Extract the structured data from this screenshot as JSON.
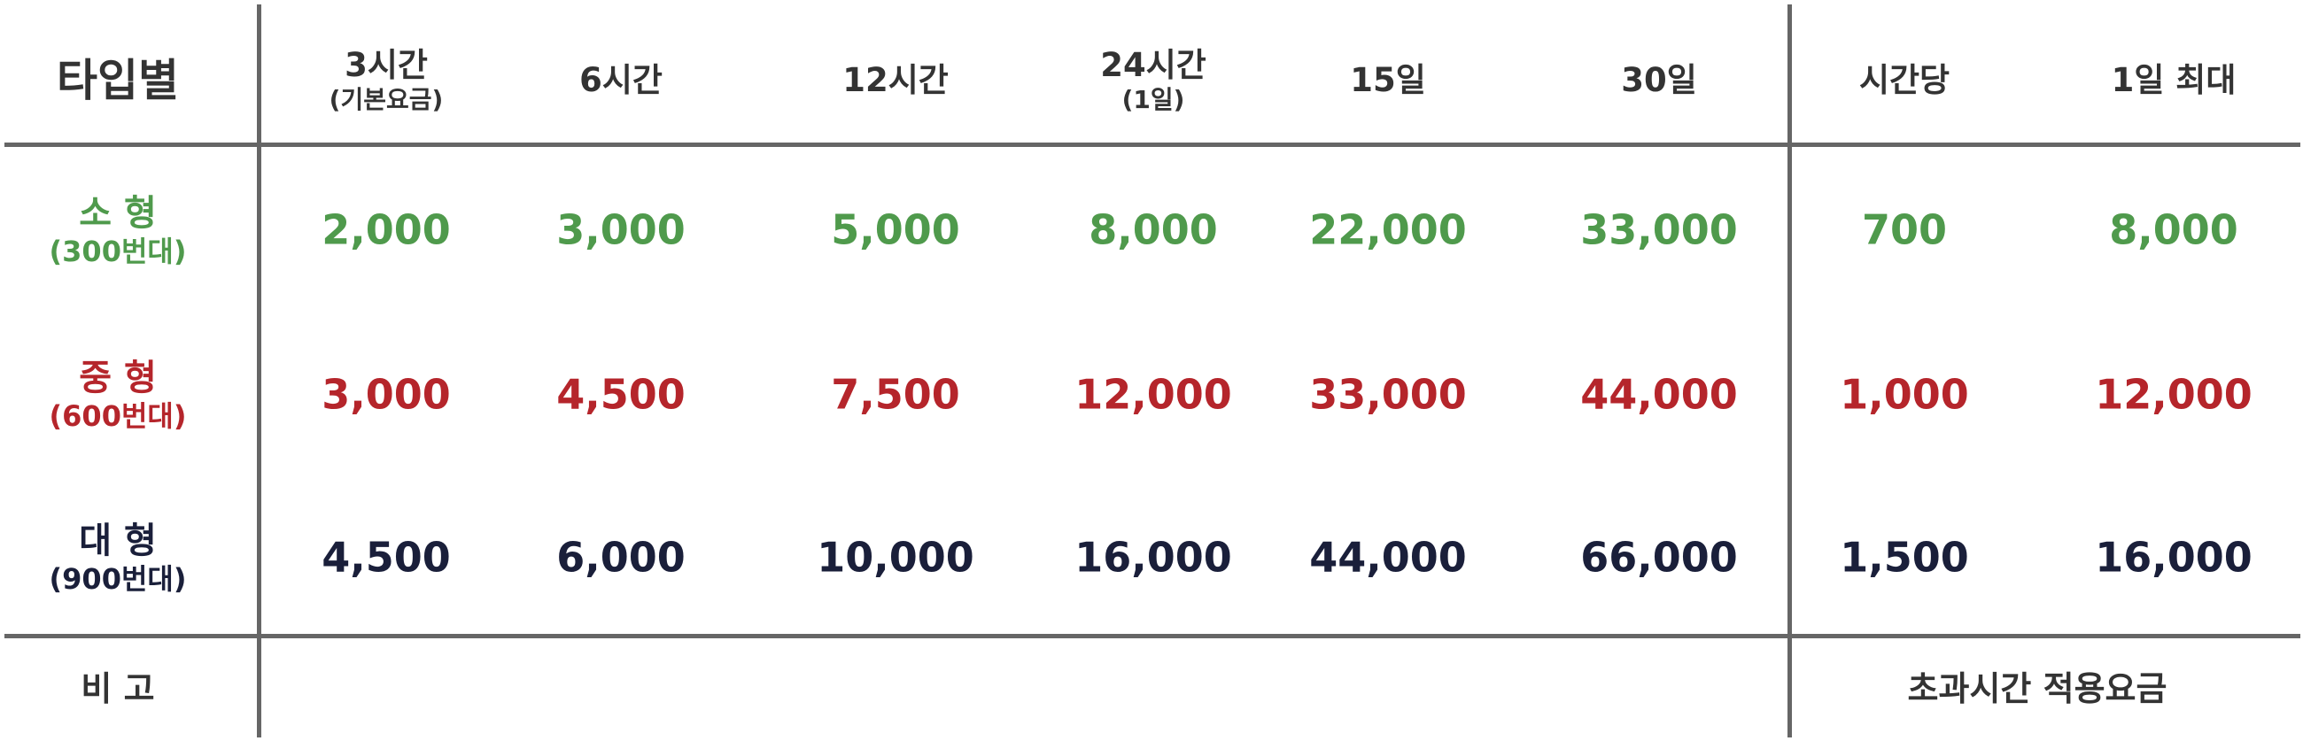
{
  "header": {
    "type_label": "타입별",
    "columns": [
      {
        "label": "3시간",
        "sub": "(기본요금)"
      },
      {
        "label": "6시간",
        "sub": ""
      },
      {
        "label": "12시간",
        "sub": ""
      },
      {
        "label": "24시간",
        "sub": "(1일)"
      },
      {
        "label": "15일",
        "sub": ""
      },
      {
        "label": "30일",
        "sub": ""
      },
      {
        "label": "시간당",
        "sub": ""
      },
      {
        "label": "1일 최대",
        "sub": ""
      }
    ]
  },
  "rows": [
    {
      "type": "소 형",
      "sub": "(300번대)",
      "color": "#4f9a4c",
      "values": [
        "2,000",
        "3,000",
        "5,000",
        "8,000",
        "22,000",
        "33,000",
        "700",
        "8,000"
      ]
    },
    {
      "type": "중 형",
      "sub": "(600번대)",
      "color": "#b5252b",
      "values": [
        "3,000",
        "4,500",
        "7,500",
        "12,000",
        "33,000",
        "44,000",
        "1,000",
        "12,000"
      ]
    },
    {
      "type": "대 형",
      "sub": "(900번대)",
      "color": "#1a1f3a",
      "values": [
        "4,500",
        "6,000",
        "10,000",
        "16,000",
        "44,000",
        "66,000",
        "1,500",
        "16,000"
      ]
    }
  ],
  "footer": {
    "label": "비 고",
    "note": "초과시간 적용요금"
  }
}
